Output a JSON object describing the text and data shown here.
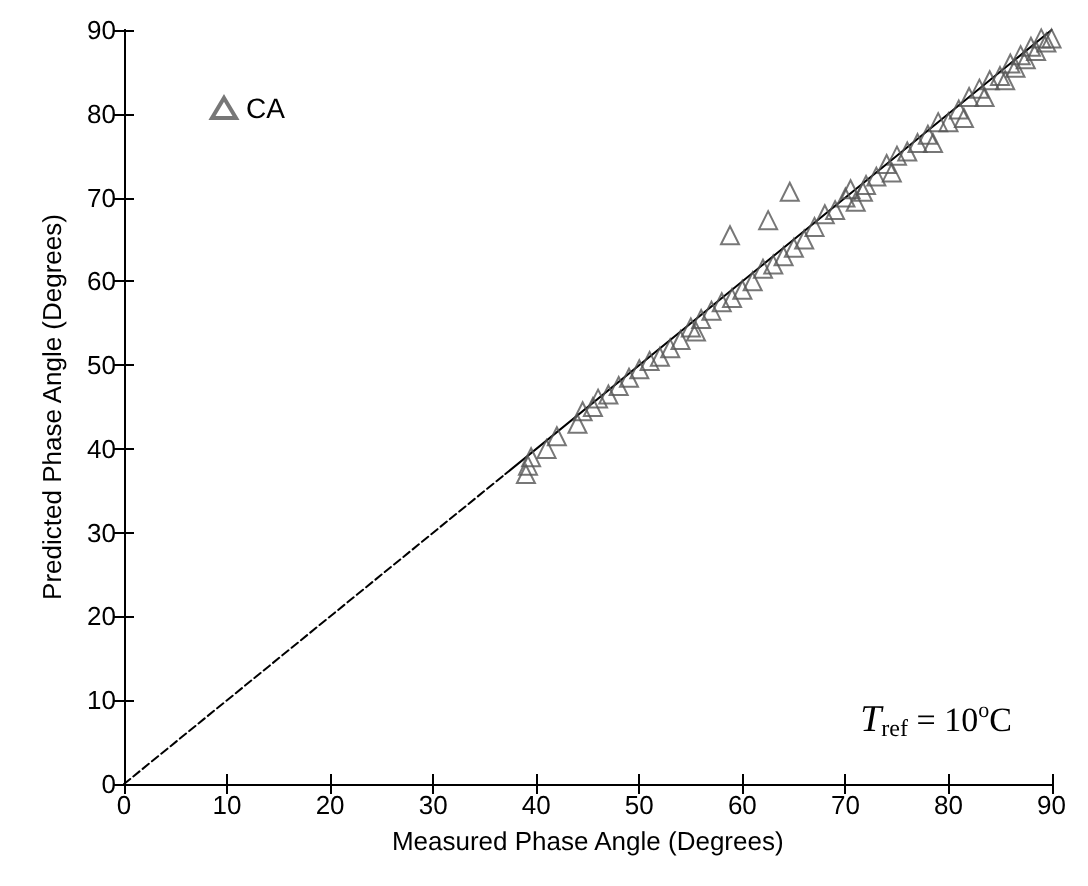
{
  "chart_data": {
    "type": "scatter",
    "xlabel": "Measured Phase Angle (Degrees)",
    "ylabel": "Predicted Phase Angle (Degrees)",
    "annotations": [
      "T$_{ref}$ = 10$^{o}$C"
    ],
    "xlim": [
      0,
      90
    ],
    "ylim": [
      0,
      90
    ],
    "xticks": [
      0,
      10,
      20,
      30,
      40,
      50,
      60,
      70,
      80,
      90
    ],
    "yticks": [
      0,
      10,
      20,
      30,
      40,
      50,
      60,
      70,
      80,
      90
    ],
    "legend": "top left",
    "grid": false,
    "series": [
      {
        "name": "CA",
        "marker": "triangle",
        "color": "#555555",
        "x": [
          39,
          39.2,
          39.5,
          41,
          42,
          44,
          44.5,
          45.5,
          46,
          47,
          48,
          49,
          50,
          51,
          52,
          53,
          54,
          55,
          55.5,
          56,
          57,
          58,
          58.8,
          59,
          60,
          61,
          62,
          62.5,
          63,
          64,
          64.6,
          65,
          66,
          67,
          68,
          69,
          70,
          70.5,
          71,
          71.7,
          72,
          73,
          74,
          74.5,
          75,
          76,
          77,
          78,
          78.5,
          79,
          80,
          81,
          81.5,
          82,
          83,
          83.5,
          84,
          85,
          85.5,
          86,
          86.5,
          87,
          87.5,
          88,
          88.5,
          89,
          89.5,
          90
        ],
        "values": [
          37,
          38,
          39,
          40,
          41.5,
          43,
          44.5,
          45,
          46,
          46.5,
          47.5,
          48.5,
          49.5,
          50.5,
          51,
          52,
          53,
          54.5,
          54,
          55.5,
          56.5,
          57.5,
          65.5,
          58,
          59,
          60,
          61.5,
          67.3,
          62,
          63,
          70.7,
          64,
          65,
          66.5,
          68,
          68.5,
          70,
          71,
          69.5,
          70.7,
          71.5,
          72.5,
          74,
          73,
          75,
          75.5,
          76.5,
          77.5,
          76.5,
          79,
          79,
          80.5,
          79.5,
          82,
          83,
          82,
          84,
          84.5,
          84,
          86,
          85.5,
          87,
          86.5,
          88,
          87.5,
          89,
          88.5,
          89
        ]
      },
      {
        "type": "line",
        "line_style": "dashed",
        "color": "#000000",
        "x": [
          0,
          37
        ],
        "values": [
          0,
          37
        ]
      },
      {
        "type": "line",
        "line_style": "solid",
        "color": "#000000",
        "x": [
          37,
          90
        ],
        "values": [
          37,
          90
        ]
      }
    ]
  }
}
